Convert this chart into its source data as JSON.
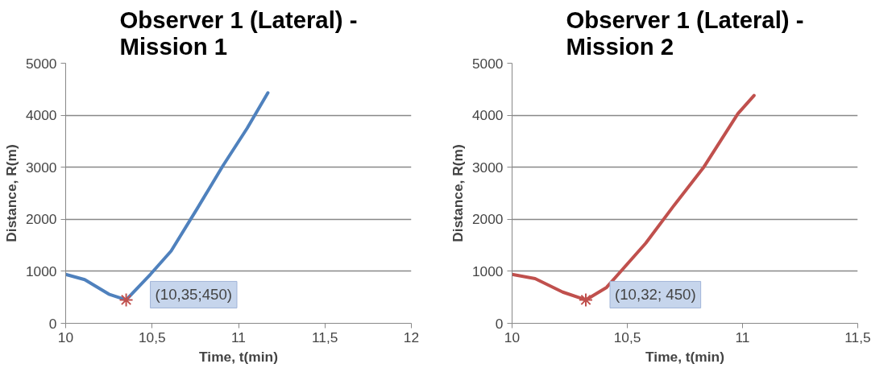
{
  "chart_data": [
    {
      "type": "line",
      "title": "Observer 1 (Lateral) - Mission 1",
      "xlabel": "Time, t(min)",
      "ylabel": "Distance, R(m)",
      "xlim": [
        10,
        12
      ],
      "xticks": [
        {
          "value": 10,
          "label": "10"
        },
        {
          "value": 10.5,
          "label": "10,5"
        },
        {
          "value": 11,
          "label": "11"
        },
        {
          "value": 11.5,
          "label": "11,5"
        },
        {
          "value": 12,
          "label": "12"
        }
      ],
      "ylim": [
        0,
        5000
      ],
      "yticks": [
        0,
        1000,
        2000,
        3000,
        4000,
        5000
      ],
      "grid": "y",
      "series": [
        {
          "color": "#4f81bd",
          "x": [
            10,
            10.11,
            10.25,
            10.35,
            10.49,
            10.61,
            10.76,
            10.91,
            11.05,
            11.17
          ],
          "values": [
            940,
            840,
            560,
            450,
            940,
            1390,
            2200,
            3030,
            3750,
            4430
          ]
        },
        {
          "type": "scatter",
          "marker": "cross",
          "color": "#c0504d",
          "x": [
            10.35
          ],
          "values": [
            450
          ]
        }
      ],
      "annotations": [
        {
          "text": "(10,35;450)",
          "x": 10.35,
          "y": 450
        }
      ]
    },
    {
      "type": "line",
      "title": "Observer 1 (Lateral) - Mission 2",
      "xlabel": "Time, t(min)",
      "ylabel": "Distance, R(m)",
      "xlim": [
        10,
        11.5
      ],
      "xticks": [
        {
          "value": 10,
          "label": "10"
        },
        {
          "value": 10.5,
          "label": "10,5"
        },
        {
          "value": 11,
          "label": "11"
        },
        {
          "value": 11.5,
          "label": "11,5"
        }
      ],
      "ylim": [
        0,
        5000
      ],
      "yticks": [
        0,
        1000,
        2000,
        3000,
        4000,
        5000
      ],
      "grid": "y",
      "series": [
        {
          "color": "#c0504d",
          "x": [
            10,
            10.1,
            10.22,
            10.32,
            10.41,
            10.58,
            10.7,
            10.83,
            10.98,
            11.05
          ],
          "values": [
            940,
            860,
            600,
            450,
            690,
            1540,
            2250,
            2990,
            4030,
            4380
          ]
        },
        {
          "type": "scatter",
          "marker": "cross",
          "color": "#c0504d",
          "x": [
            10.32
          ],
          "values": [
            450
          ]
        }
      ],
      "annotations": [
        {
          "text": "(10,32; 450)",
          "x": 10.32,
          "y": 450
        }
      ]
    }
  ]
}
